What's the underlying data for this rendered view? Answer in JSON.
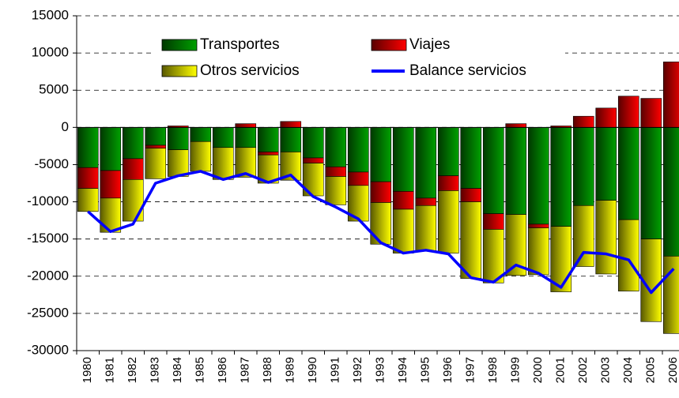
{
  "chart_data": {
    "type": "bar",
    "stacked": true,
    "grid": true,
    "legend": "top",
    "categories": [
      "1980",
      "1981",
      "1982",
      "1983",
      "1984",
      "1985",
      "1986",
      "1987",
      "1988",
      "1989",
      "1990",
      "1991",
      "1992",
      "1993",
      "1994",
      "1995",
      "1996",
      "1997",
      "1998",
      "1999",
      "2000",
      "2001",
      "2002",
      "2003",
      "2004",
      "2005",
      "2006"
    ],
    "ylim": [
      -30000,
      15000
    ],
    "yticks": [
      -30000,
      -25000,
      -20000,
      -15000,
      -10000,
      -5000,
      0,
      5000,
      10000,
      15000
    ],
    "series": [
      {
        "name": "Transportes",
        "color": "#00a000",
        "values": [
          -5400,
          -5800,
          -4200,
          -2400,
          -3000,
          -1900,
          -2700,
          -2700,
          -3300,
          -3300,
          -4100,
          -5300,
          -6000,
          -7300,
          -8600,
          -9500,
          -6500,
          -8200,
          -11600,
          -11700,
          -13000,
          -13300,
          -10500,
          -9800,
          -12400,
          -15000,
          -17300
        ]
      },
      {
        "name": "Viajes",
        "color": "#ff0000",
        "values": [
          -2800,
          -3700,
          -2800,
          -400,
          200,
          0,
          0,
          500,
          -400,
          800,
          -700,
          -1300,
          -1800,
          -2800,
          -2400,
          -1000,
          -2000,
          -1800,
          -2100,
          500,
          -500,
          200,
          1500,
          2600,
          4200,
          3900,
          8800
        ]
      },
      {
        "name": "Otros servicios",
        "color": "#ffff00",
        "values": [
          -3100,
          -4600,
          -5600,
          -4100,
          -3600,
          -4000,
          -4300,
          -4000,
          -3800,
          -3800,
          -4400,
          -3800,
          -4800,
          -5600,
          -5900,
          -6100,
          -8400,
          -10300,
          -7200,
          -8200,
          -6300,
          -8800,
          -8200,
          -9900,
          -9600,
          -11100,
          -10400
        ]
      },
      {
        "name": "Balance servicios",
        "type": "line",
        "color": "#0000ff",
        "values": [
          -11300,
          -14000,
          -13000,
          -7500,
          -6500,
          -5900,
          -7000,
          -6200,
          -7400,
          -6400,
          -9300,
          -10700,
          -12300,
          -15500,
          -16900,
          -16500,
          -17000,
          -20200,
          -20800,
          -18500,
          -19600,
          -21500,
          -16800,
          -17000,
          -17800,
          -22200,
          -19000
        ]
      }
    ]
  }
}
